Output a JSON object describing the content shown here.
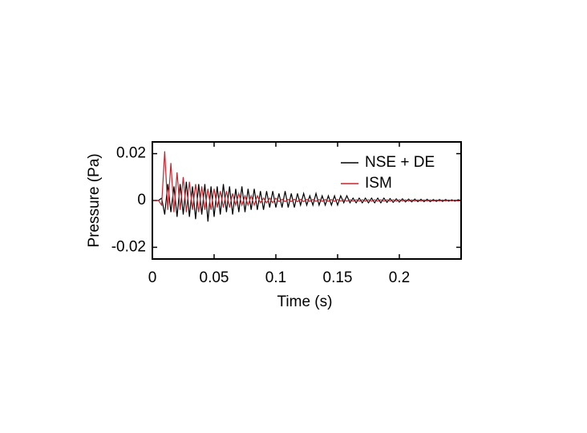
{
  "chart_data": {
    "type": "line",
    "xlabel": "Time (s)",
    "ylabel": "Pressure (Pa)",
    "x": [
      0,
      0.0025,
      0.005,
      0.0075,
      0.01,
      0.0125,
      0.015,
      0.0175,
      0.02,
      0.0225,
      0.025,
      0.0275,
      0.03,
      0.0325,
      0.035,
      0.0375,
      0.04,
      0.0425,
      0.045,
      0.0475,
      0.05,
      0.0525,
      0.055,
      0.0575,
      0.06,
      0.0625,
      0.065,
      0.0675,
      0.07,
      0.0725,
      0.075,
      0.0775,
      0.08,
      0.0825,
      0.085,
      0.0875,
      0.09,
      0.0925,
      0.095,
      0.0975,
      0.1,
      0.1025,
      0.105,
      0.1075,
      0.11,
      0.1125,
      0.115,
      0.1175,
      0.12,
      0.1225,
      0.125,
      0.1275,
      0.13,
      0.1325,
      0.135,
      0.1375,
      0.14,
      0.1425,
      0.145,
      0.1475,
      0.15,
      0.1525,
      0.155,
      0.1575,
      0.16,
      0.1625,
      0.165,
      0.1675,
      0.17,
      0.1725,
      0.175,
      0.1775,
      0.18,
      0.1825,
      0.185,
      0.1875,
      0.19,
      0.1925,
      0.195,
      0.1975,
      0.2,
      0.2025,
      0.205,
      0.2075,
      0.21,
      0.2125,
      0.215,
      0.2175,
      0.22,
      0.2225,
      0.225,
      0.2275,
      0.23,
      0.2325,
      0.235,
      0.2375,
      0.24,
      0.2425,
      0.245,
      0.2475,
      0.25
    ],
    "series": [
      {
        "name": "NSE + DE",
        "color": "#000000",
        "values": [
          0,
          0,
          0,
          0.001,
          -0.006,
          0.007,
          -0.005,
          0.006,
          -0.007,
          0.007,
          -0.006,
          0.008,
          -0.007,
          0.006,
          -0.008,
          0.007,
          -0.006,
          0.007,
          -0.009,
          0.006,
          -0.007,
          0.006,
          -0.006,
          0.007,
          -0.005,
          0.006,
          -0.006,
          0.005,
          -0.005,
          0.006,
          -0.005,
          0.005,
          -0.004,
          0.005,
          -0.004,
          0.004,
          -0.004,
          0.004,
          -0.003,
          0.004,
          -0.003,
          0.003,
          -0.003,
          0.004,
          -0.003,
          0.003,
          -0.003,
          0.003,
          -0.002,
          0.003,
          -0.002,
          0.002,
          -0.002,
          0.003,
          -0.002,
          0.002,
          -0.002,
          0.002,
          -0.002,
          0.002,
          -0.002,
          0.002,
          -0.001,
          0.002,
          -0.001,
          0.001,
          -0.001,
          0.001,
          -0.001,
          0.001,
          -0.001,
          0.001,
          -0.001,
          0.001,
          -0.001,
          0.001,
          -0.0008,
          0.0008,
          -0.0008,
          0.0007,
          -0.0007,
          0.0007,
          -0.0006,
          0.0006,
          -0.0006,
          0.0006,
          -0.0005,
          0.0005,
          -0.0005,
          0.0005,
          -0.0005,
          0.0004,
          -0.0004,
          0.0004,
          -0.0004,
          0.0004,
          -0.0003,
          0.0003,
          -0.0003,
          0.0003,
          0
        ]
      },
      {
        "name": "ISM",
        "color": "#c8232c",
        "values": [
          0,
          0,
          0,
          -0.002,
          0.021,
          -0.004,
          0.016,
          -0.005,
          0.012,
          -0.004,
          0.01,
          -0.005,
          0.008,
          -0.004,
          0.007,
          -0.005,
          0.006,
          -0.004,
          0.005,
          -0.004,
          0.005,
          -0.003,
          0.004,
          -0.003,
          0.004,
          -0.003,
          0.003,
          -0.002,
          0.003,
          -0.002,
          0.002,
          -0.002,
          0.002,
          -0.002,
          0.002,
          -0.001,
          0.001,
          -0.001,
          0.001,
          -0.001,
          0.001,
          -0.0005,
          0.0005,
          -0.0005,
          0.0005,
          -0.0005,
          0.0005,
          -0.0005,
          0.0005,
          -0.0005,
          0.0005,
          -0.0004,
          0.0004,
          -0.0004,
          0.0004,
          -0.0004,
          0.0004,
          -0.0004,
          0.0004,
          -0.0004,
          0.0004,
          -0.0003,
          0.0003,
          -0.0003,
          0.0003,
          -0.0003,
          0.0003,
          -0.0003,
          0.0003,
          -0.0003,
          0.0003,
          -0.0003,
          0.0003,
          -0.0003,
          0.0003,
          -0.0003,
          0.0003,
          -0.0003,
          0.0003,
          -0.0003,
          0.0003,
          -0.0002,
          0.0002,
          -0.0002,
          0.0002,
          -0.0002,
          0.0002,
          -0.0002,
          0.0002,
          -0.0002,
          0.0002,
          -0.0002,
          0.0002,
          -0.0002,
          0.0002,
          -0.0002,
          0.0002,
          -0.0002,
          0.0002,
          -0.0002,
          0
        ]
      }
    ],
    "xlim": [
      0,
      0.25
    ],
    "ylim": [
      -0.025,
      0.025
    ],
    "xticks": [
      0,
      0.05,
      0.1,
      0.15,
      0.2
    ],
    "yticks": [
      -0.02,
      0,
      0.02
    ],
    "legend": "upper right"
  }
}
